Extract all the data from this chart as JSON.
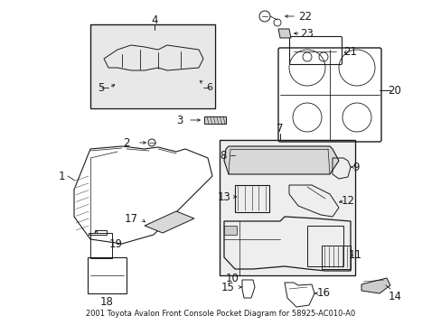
{
  "title": "2001 Toyota Avalon Front Console Pocket Diagram for 58925-AC010-A0",
  "bg_color": "#ffffff",
  "line_color": "#1a1a1a",
  "fig_width": 4.89,
  "fig_height": 3.6,
  "dpi": 100,
  "label_fontsize": 8.5,
  "caption_fontsize": 6.0
}
